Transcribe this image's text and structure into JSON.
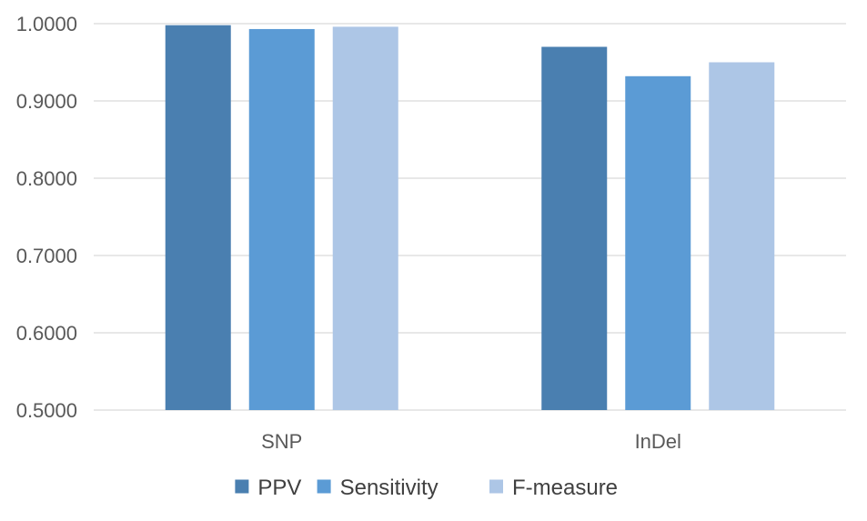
{
  "chart_data": {
    "type": "bar",
    "title": "",
    "xlabel": "",
    "ylabel": "",
    "categories": [
      "SNP",
      "InDel"
    ],
    "series": [
      {
        "name": "PPV",
        "values": [
          0.998,
          0.97
        ],
        "color": "#4a7fb0"
      },
      {
        "name": "Sensitivity",
        "values": [
          0.993,
          0.932
        ],
        "color": "#5b9bd5"
      },
      {
        "name": "F-measure",
        "values": [
          0.996,
          0.95
        ],
        "color": "#adc6e6"
      }
    ],
    "ylim": [
      0.5,
      1.0
    ],
    "yticks": [
      0.5,
      0.6,
      0.7,
      0.8,
      0.9,
      1.0
    ],
    "ytick_labels": [
      "0.5000",
      "0.6000",
      "0.7000",
      "0.8000",
      "0.9000",
      "1.0000"
    ],
    "grid": true,
    "legend_position": "bottom",
    "gridline_color": "#d9d9d9"
  }
}
